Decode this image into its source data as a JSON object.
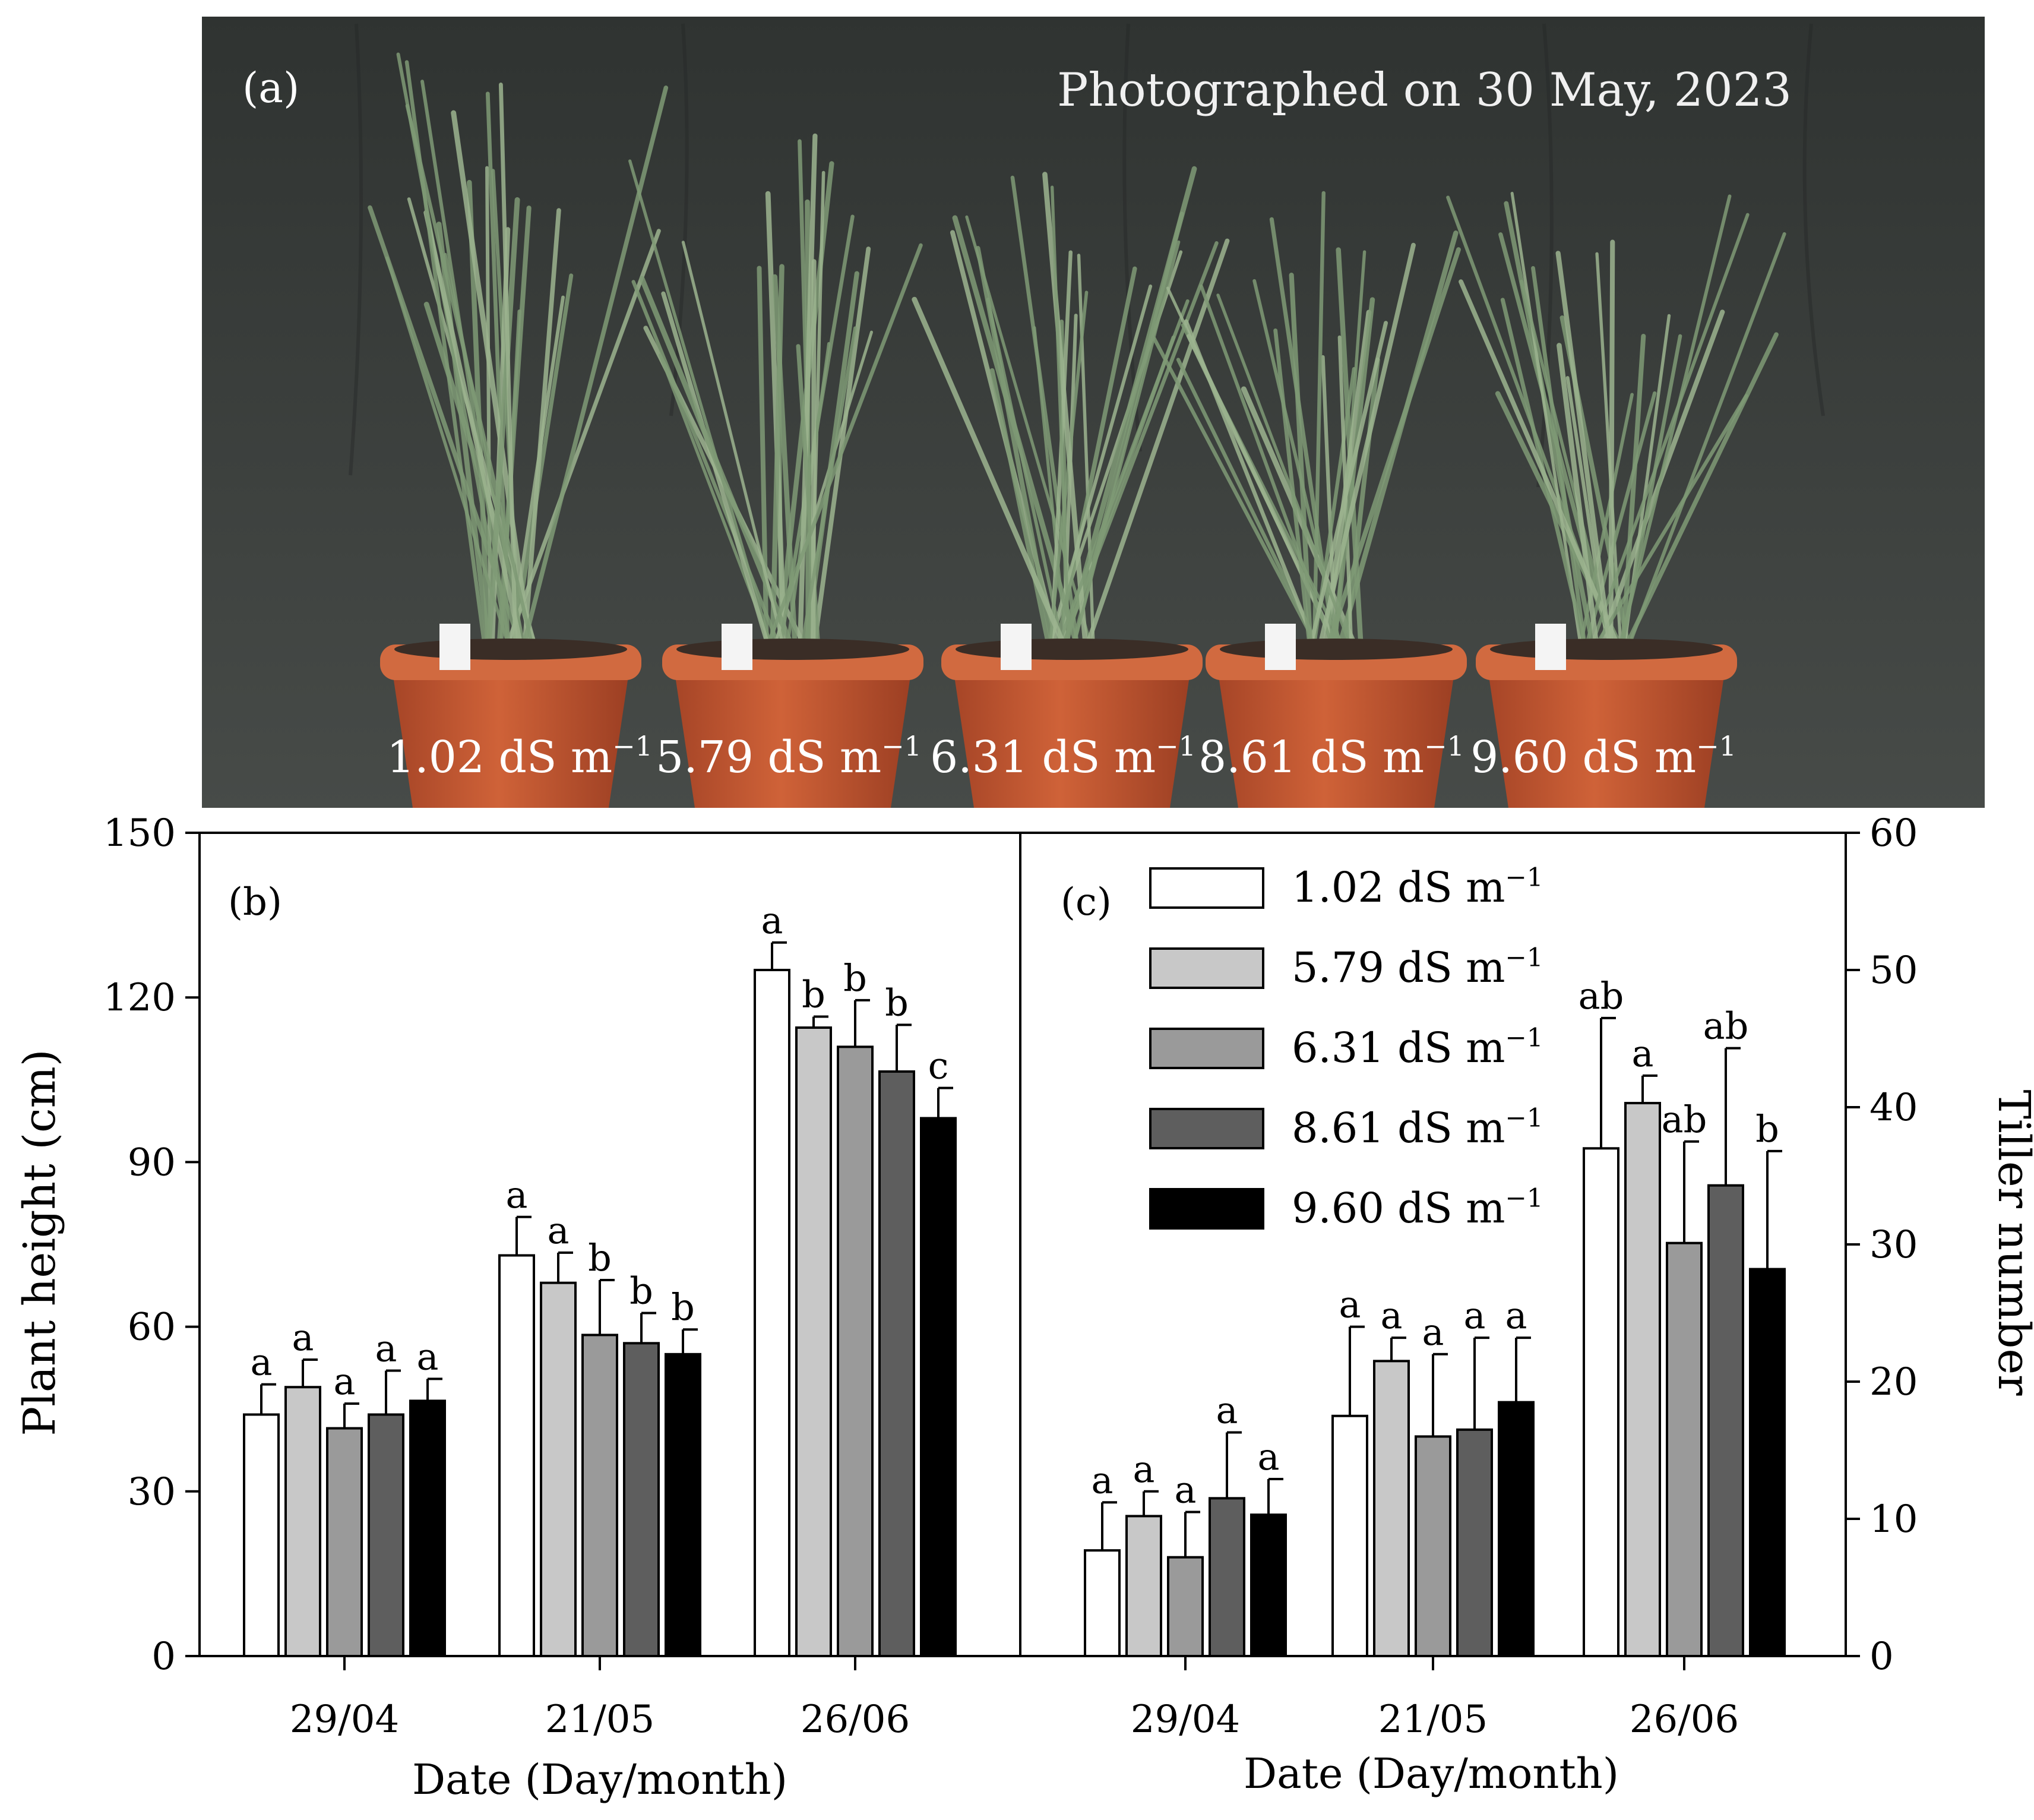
{
  "photo": {
    "panel_label": "(a)",
    "caption": "Photographed on 30 May, 2023",
    "pot_labels": [
      "1.02 dS m",
      "5.79 dS m",
      "6.31 dS m",
      "8.61 dS m",
      "9.60 dS m"
    ],
    "unit_superscript": "−1",
    "colors": {
      "background": "#3c403e",
      "pot": "#c0552f",
      "pot_rim": "#d16a40",
      "grass": "#7f9a75"
    }
  },
  "treatments": [
    {
      "name": "1.02 dS m",
      "color": "#ffffff"
    },
    {
      "name": "5.79 dS m",
      "color": "#c8c8c8"
    },
    {
      "name": "6.31 dS m",
      "color": "#9a9a9a"
    },
    {
      "name": "8.61 dS m",
      "color": "#5e5e5e"
    },
    {
      "name": "9.60 dS m",
      "color": "#000000"
    }
  ],
  "legend_superscript": "−1",
  "chart_data": [
    {
      "panel": "(b)",
      "type": "bar",
      "title": "",
      "xlabel": "Date (Day/month)",
      "ylabel": "Plant height (cm)",
      "ylim": [
        0,
        150
      ],
      "yticks": [
        0,
        30,
        60,
        90,
        120,
        150
      ],
      "categories": [
        "29/04",
        "21/05",
        "26/06"
      ],
      "series": [
        {
          "name": "1.02 dS m-1",
          "values": [
            44,
            73,
            125
          ],
          "errors": [
            5.5,
            7,
            5
          ],
          "letters": [
            "a",
            "a",
            "a"
          ]
        },
        {
          "name": "5.79 dS m-1",
          "values": [
            49,
            68,
            114.5
          ],
          "errors": [
            5,
            5.5,
            2
          ],
          "letters": [
            "a",
            "a",
            "b"
          ]
        },
        {
          "name": "6.31 dS m-1",
          "values": [
            41.5,
            58.5,
            111
          ],
          "errors": [
            4.5,
            10,
            8.5
          ],
          "letters": [
            "a",
            "b",
            "b"
          ]
        },
        {
          "name": "8.61 dS m-1",
          "values": [
            44,
            57,
            106.5
          ],
          "errors": [
            8,
            5.5,
            8.5
          ],
          "letters": [
            "a",
            "b",
            "b"
          ]
        },
        {
          "name": "9.60 dS m-1",
          "values": [
            46.5,
            55,
            98
          ],
          "errors": [
            4,
            4.5,
            5.5
          ],
          "letters": [
            "a",
            "b",
            "c"
          ]
        }
      ]
    },
    {
      "panel": "(c)",
      "type": "bar",
      "title": "",
      "xlabel": "Date (Day/month)",
      "ylabel": "Tiller number",
      "ylim": [
        0,
        60
      ],
      "yticks": [
        0,
        10,
        20,
        30,
        40,
        50,
        60
      ],
      "axis_side": "right",
      "categories": [
        "29/04",
        "21/05",
        "26/06"
      ],
      "series": [
        {
          "name": "1.02 dS m-1",
          "values": [
            7.7,
            17.5,
            37
          ],
          "errors": [
            3.5,
            6.5,
            9.5
          ],
          "letters": [
            "a",
            "a",
            "ab"
          ]
        },
        {
          "name": "5.79 dS m-1",
          "values": [
            10.2,
            21.5,
            40.3
          ],
          "errors": [
            1.8,
            1.7,
            2
          ],
          "letters": [
            "a",
            "a",
            "a"
          ]
        },
        {
          "name": "6.31 dS m-1",
          "values": [
            7.2,
            16,
            30.1
          ],
          "errors": [
            3.3,
            6,
            7.4
          ],
          "letters": [
            "a",
            "a",
            "ab"
          ]
        },
        {
          "name": "8.61 dS m-1",
          "values": [
            11.5,
            16.5,
            34.3
          ],
          "errors": [
            4.8,
            6.7,
            10
          ],
          "letters": [
            "a",
            "a",
            "ab"
          ]
        },
        {
          "name": "9.60 dS m-1",
          "values": [
            10.3,
            18.5,
            28.2
          ],
          "errors": [
            2.6,
            4.7,
            8.6
          ],
          "letters": [
            "a",
            "a",
            "b"
          ]
        }
      ]
    }
  ]
}
